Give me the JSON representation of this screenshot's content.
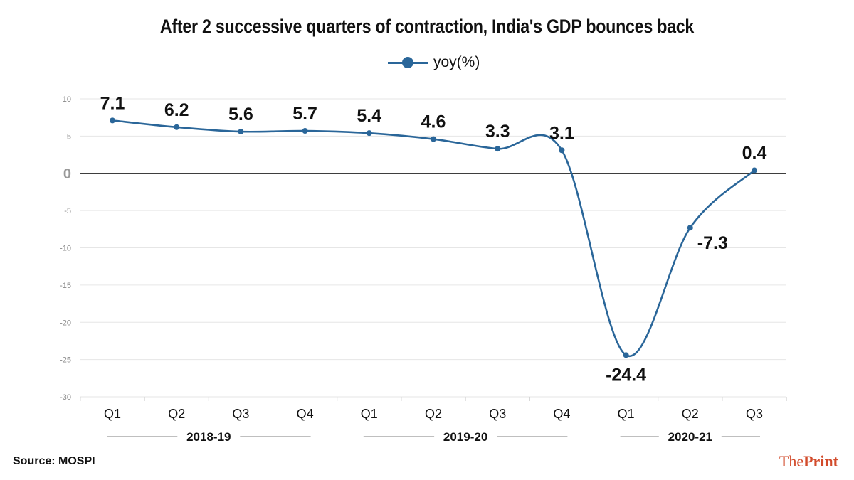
{
  "title": "After 2 successive quarters of contraction, India's GDP bounces back",
  "source": "Source: MOSPI",
  "brand": {
    "part1": "The",
    "part2": "Print"
  },
  "colors": {
    "line": "#2a6699",
    "grid": "#e6e6e6",
    "zero_line": "#222222",
    "brand": "#d24b2b"
  },
  "chart_data": {
    "type": "line",
    "title": "After 2 successive quarters of contraction, India's GDP bounces back",
    "xlabel": "",
    "ylabel": "",
    "categories": [
      "Q1",
      "Q2",
      "Q3",
      "Q4",
      "Q1",
      "Q2",
      "Q3",
      "Q4",
      "Q1",
      "Q2",
      "Q3"
    ],
    "groups": [
      {
        "label": "2018-19",
        "from": 0,
        "to": 3
      },
      {
        "label": "2019-20",
        "from": 4,
        "to": 7
      },
      {
        "label": "2020-21",
        "from": 8,
        "to": 10
      }
    ],
    "series": [
      {
        "name": "yoy(%)",
        "values": [
          7.1,
          6.2,
          5.6,
          5.7,
          5.4,
          4.6,
          3.3,
          3.1,
          -24.4,
          -7.3,
          0.4
        ]
      }
    ],
    "data_labels": [
      "7.1",
      "6.2",
      "5.6",
      "5.7",
      "5.4",
      "4.6",
      "3.3",
      "3.1",
      "-24.4",
      "-7.3",
      "0.4"
    ],
    "yticks": [
      10,
      5,
      0,
      -5,
      -10,
      -15,
      -20,
      -25,
      -30
    ],
    "ylim": [
      -30,
      10
    ],
    "grid": true,
    "legend": "top-center"
  }
}
